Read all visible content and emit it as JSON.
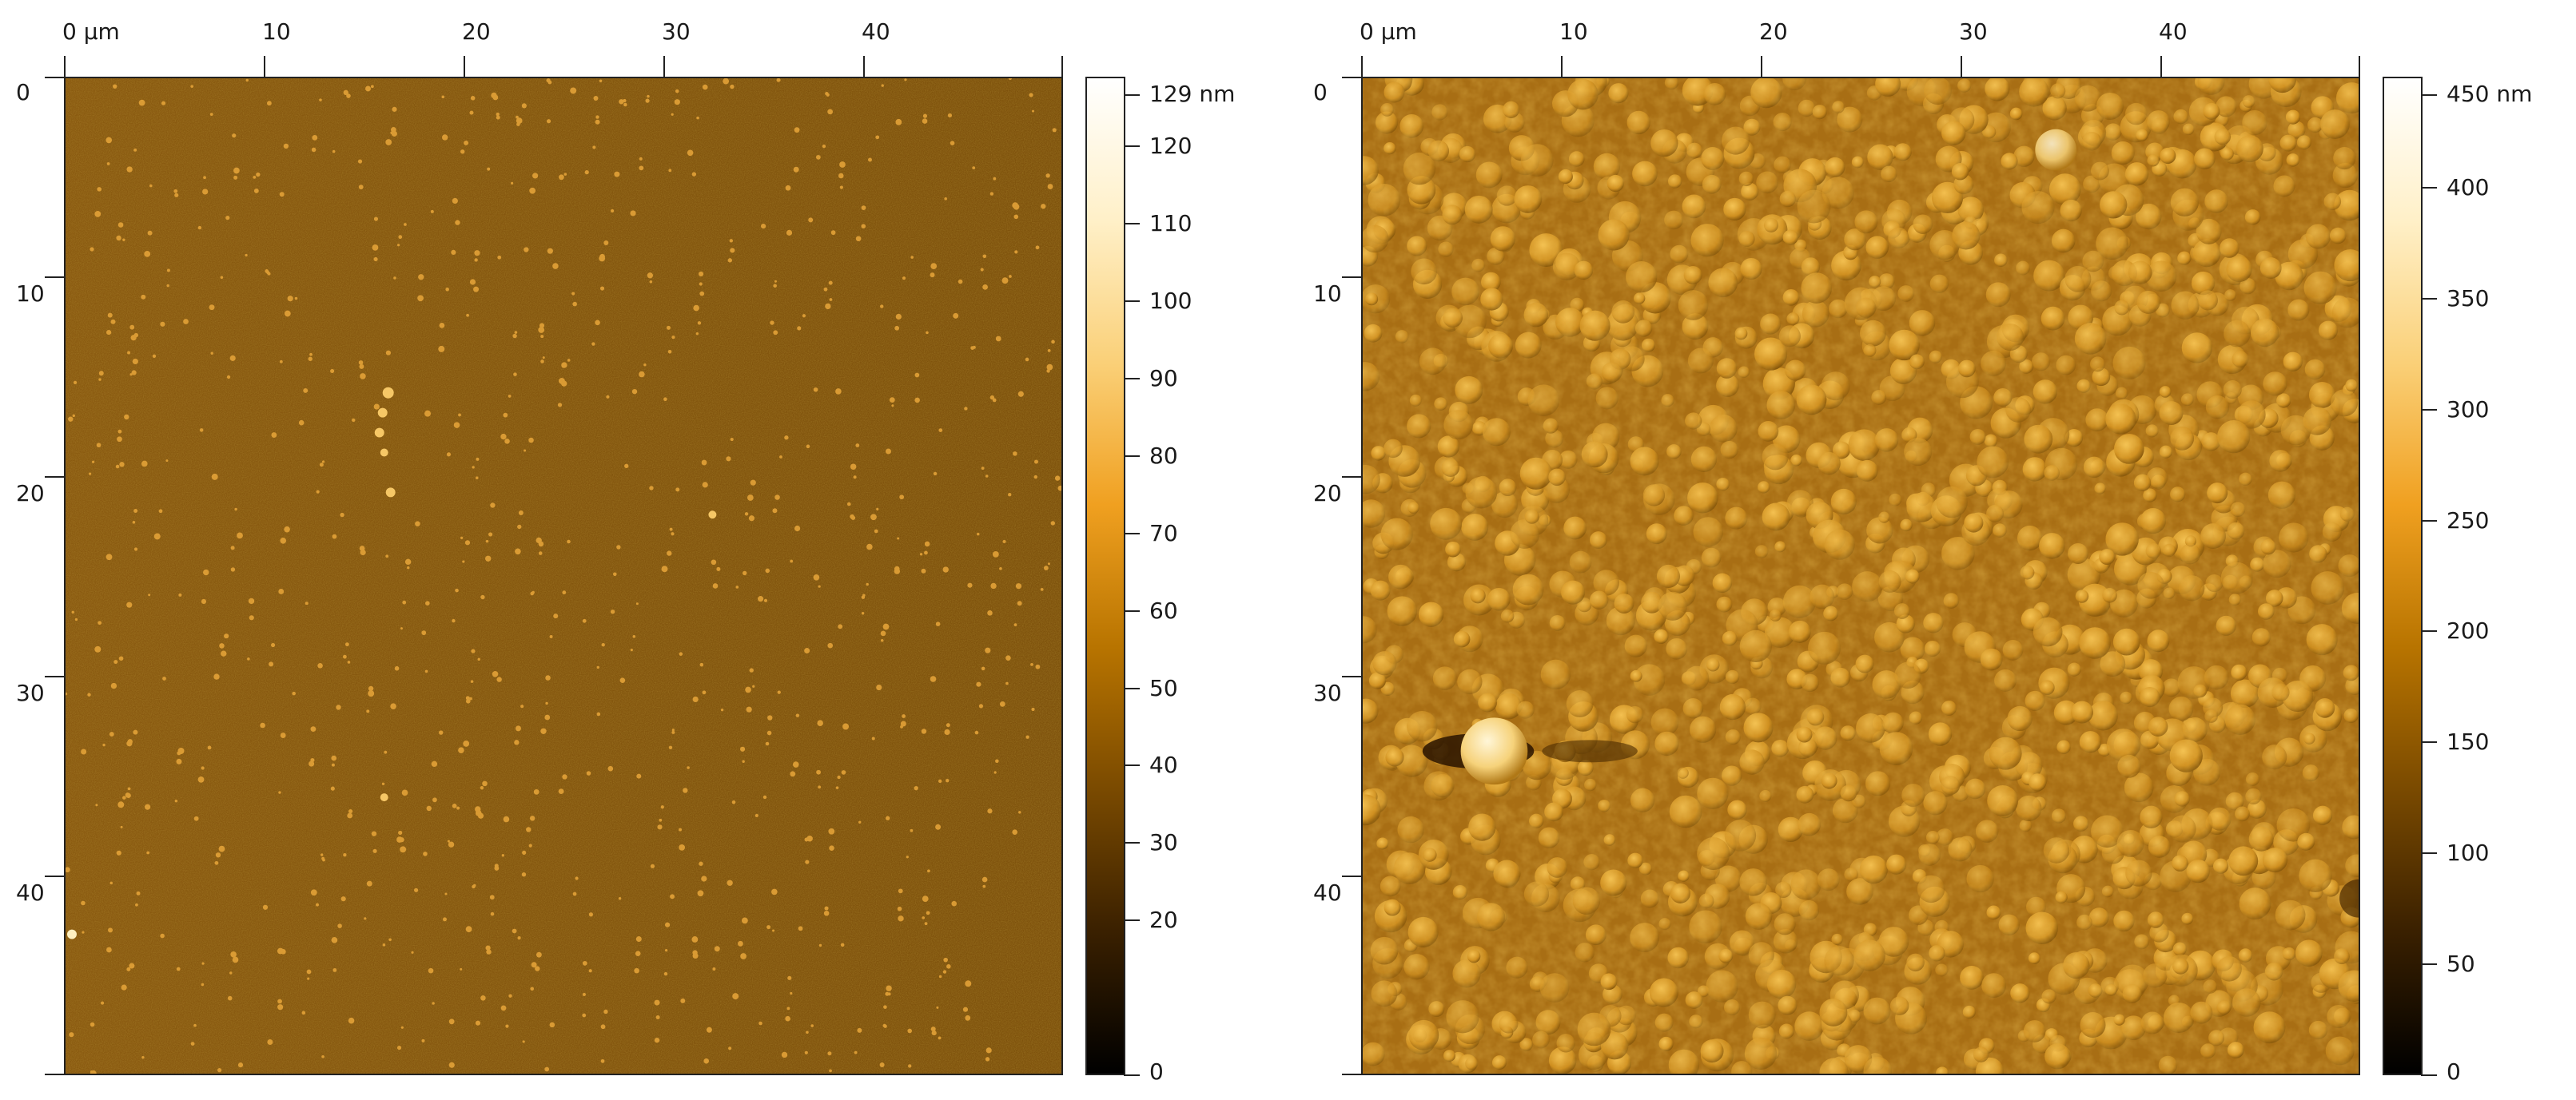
{
  "panels": [
    {
      "x_ticks": [
        "0 µm",
        "10",
        "20",
        "30",
        "40"
      ],
      "y_ticks": [
        "0",
        "10",
        "20",
        "30",
        "40"
      ],
      "colorbar": {
        "max_label": "129 nm",
        "labels": [
          "120",
          "110",
          "100",
          "90",
          "80",
          "70",
          "60",
          "50",
          "40",
          "30",
          "20",
          "0"
        ]
      },
      "image_tone": "#8a5a10"
    },
    {
      "x_ticks": [
        "0 µm",
        "10",
        "20",
        "30",
        "40"
      ],
      "y_ticks": [
        "0",
        "10",
        "20",
        "30",
        "40"
      ],
      "colorbar": {
        "max_label": "450 nm",
        "labels": [
          "400",
          "350",
          "300",
          "250",
          "200",
          "150",
          "100",
          "50",
          "0"
        ]
      },
      "image_tone": "#c28a18"
    }
  ],
  "colormap": [
    "#000000",
    "#3a2000",
    "#7a4a00",
    "#b87400",
    "#f0a020",
    "#fad078",
    "#fff0c8",
    "#ffffff"
  ]
}
